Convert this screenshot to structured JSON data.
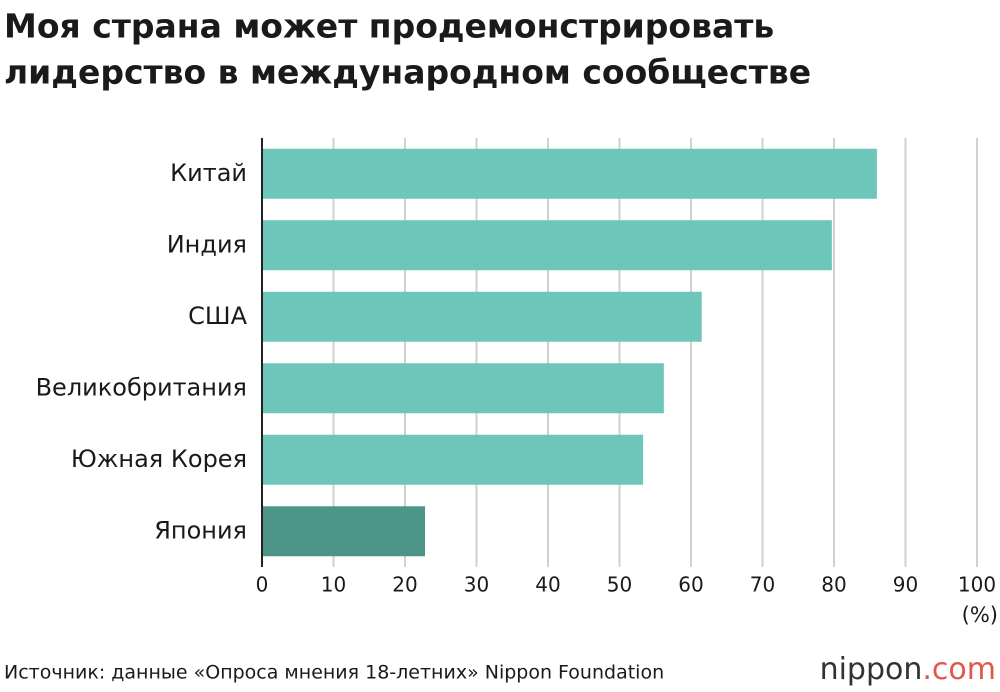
{
  "chart_data": {
    "type": "bar",
    "orientation": "horizontal",
    "title": [
      "Моя страна может продемонстрировать",
      "лидерство в международном сообществе"
    ],
    "categories": [
      "Китай",
      "Индия",
      "США",
      "Великобритания",
      "Южная Корея",
      "Япония"
    ],
    "values": [
      86.0,
      79.7,
      61.5,
      56.2,
      53.3,
      22.8
    ],
    "colors": [
      "#6cc7ba",
      "#6cc7ba",
      "#6cc7ba",
      "#6cc7ba",
      "#6cc7ba",
      "#4e9589"
    ],
    "xlim": [
      0,
      100
    ],
    "xticks": [
      0,
      10,
      20,
      30,
      40,
      50,
      60,
      70,
      80,
      90,
      100
    ],
    "x_unit": "(%)",
    "grid": true,
    "source": "Источник: данные «Опроса мнения 18-летних» Nippon Foundation",
    "logo": {
      "name": "nippon",
      "suffix": ".com"
    }
  }
}
